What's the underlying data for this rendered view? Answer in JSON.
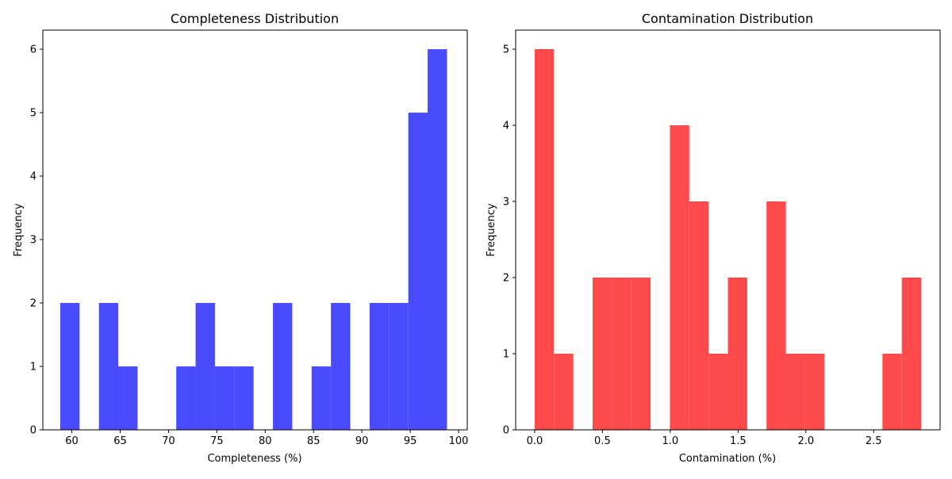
{
  "colors": {
    "left_bars": "#4a4afe",
    "right_bars": "#fe4a4a",
    "axes": "#000000",
    "background": "#ffffff"
  },
  "chart_data": [
    {
      "type": "bar",
      "title": "Completeness Distribution",
      "xlabel": "Completeness (%)",
      "ylabel": "Frequency",
      "xlim": [
        57.0,
        100.9
      ],
      "ylim": [
        0,
        6.3
      ],
      "xticks": [
        60,
        65,
        70,
        75,
        80,
        85,
        90,
        95,
        100
      ],
      "xtick_labels": [
        "60",
        "65",
        "70",
        "75",
        "80",
        "85",
        "90",
        "95",
        "100"
      ],
      "yticks": [
        0,
        1,
        2,
        3,
        4,
        5,
        6
      ],
      "ytick_labels": [
        "0",
        "1",
        "2",
        "3",
        "4",
        "5",
        "6"
      ],
      "grid": false,
      "bin_edges": [
        58.8,
        60.8,
        62.8,
        64.8,
        66.8,
        68.8,
        70.8,
        72.8,
        74.8,
        76.8,
        78.8,
        80.8,
        82.8,
        84.8,
        86.8,
        88.8,
        90.8,
        92.8,
        94.8,
        96.8,
        98.8
      ],
      "values": [
        2,
        0,
        2,
        1,
        0,
        0,
        1,
        2,
        1,
        1,
        0,
        2,
        0,
        1,
        2,
        0,
        2,
        2,
        5,
        6
      ]
    },
    {
      "type": "bar",
      "title": "Contamination Distribution",
      "xlabel": "Contamination (%)",
      "ylabel": "Frequency",
      "xlim": [
        -0.14,
        2.99
      ],
      "ylim": [
        0,
        5.25
      ],
      "xticks": [
        0.0,
        0.5,
        1.0,
        1.5,
        2.0,
        2.5
      ],
      "xtick_labels": [
        "0.0",
        "0.5",
        "1.0",
        "1.5",
        "2.0",
        "2.5"
      ],
      "yticks": [
        0,
        1,
        2,
        3,
        4,
        5
      ],
      "ytick_labels": [
        "0",
        "1",
        "2",
        "3",
        "4",
        "5"
      ],
      "grid": false,
      "bin_edges": [
        0.0,
        0.1425,
        0.285,
        0.4275,
        0.57,
        0.7125,
        0.855,
        0.9975,
        1.14,
        1.2825,
        1.425,
        1.5675,
        1.71,
        1.8525,
        1.995,
        2.1375,
        2.28,
        2.4225,
        2.565,
        2.7075,
        2.85
      ],
      "values": [
        5,
        1,
        0,
        2,
        2,
        2,
        0,
        4,
        3,
        1,
        2,
        0,
        3,
        1,
        1,
        0,
        0,
        0,
        1,
        2
      ]
    }
  ]
}
